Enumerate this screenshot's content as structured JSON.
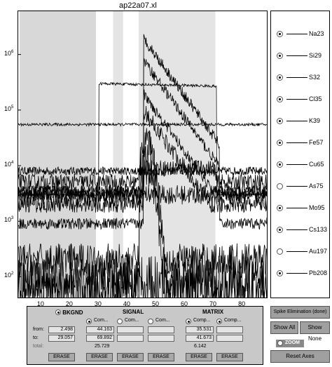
{
  "window": {
    "title": "ap22a07.xl"
  },
  "chart_data": {
    "type": "line",
    "title": "ap22a07.xl",
    "x_ticks": [
      10,
      20,
      30,
      40,
      50,
      60,
      70,
      80
    ],
    "xlim": [
      2,
      89
    ],
    "y_scale": "log",
    "y_ticks": [
      {
        "base": "10",
        "exp": "2",
        "value": 100
      },
      {
        "base": "10",
        "exp": "3",
        "value": 1000
      },
      {
        "base": "10",
        "exp": "4",
        "value": 10000
      },
      {
        "base": "10",
        "exp": "5",
        "value": 100000
      },
      {
        "base": "10",
        "exp": "6",
        "value": 1000000
      }
    ],
    "ylim": [
      40,
      6000000
    ],
    "background_regions": [
      {
        "from": 2.498,
        "to": 29.057,
        "color": "#d8d8d8"
      },
      {
        "from": 35.0,
        "to": 38.5,
        "color": "#e4e4e4"
      },
      {
        "from": 43.9,
        "to": 70.6,
        "color": "#e4e4e4"
      }
    ],
    "grid": false,
    "legend_placement": "right panel",
    "series": [
      {
        "name": "Na23",
        "kind": "flat",
        "base": 8000,
        "peak": 8000,
        "noise": 0.15
      },
      {
        "name": "Si29",
        "kind": "pulse",
        "base": 3000,
        "peak": 3000,
        "noise": 0.35
      },
      {
        "name": "S32",
        "kind": "pulse",
        "base": 5000,
        "peak": 9000,
        "noise": 0.3
      },
      {
        "name": "Cl35",
        "kind": "flat",
        "base": 55000,
        "peak": 60000,
        "noise": 0.05
      },
      {
        "name": "K39",
        "kind": "plateau",
        "base": 3000,
        "peak": 300000,
        "noise": 0.05
      },
      {
        "name": "Fe57",
        "kind": "decay",
        "base": 900,
        "peak": 2000000,
        "noise": 0.2
      },
      {
        "name": "Cu65",
        "kind": "decay",
        "base": 3000,
        "peak": 800000,
        "noise": 0.2
      },
      {
        "name": "As75",
        "kind": "spike",
        "base": 200,
        "peak": 30000,
        "noise": 0.6
      },
      {
        "name": "Mo95",
        "kind": "decay",
        "base": 3500,
        "peak": 200000,
        "noise": 0.2
      },
      {
        "name": "Cs133",
        "kind": "spike",
        "base": 80,
        "peak": 10000,
        "noise": 0.8
      },
      {
        "name": "Au197",
        "kind": "noise",
        "base": 60,
        "peak": 200,
        "noise": 1.2
      },
      {
        "name": "Pb208",
        "kind": "decay",
        "base": 2000,
        "peak": 100000,
        "noise": 0.3
      }
    ]
  },
  "legend": {
    "items": [
      {
        "label": "Na23",
        "selected": true
      },
      {
        "label": "Si29",
        "selected": true
      },
      {
        "label": "S32",
        "selected": true
      },
      {
        "label": "Cl35",
        "selected": true
      },
      {
        "label": "K39",
        "selected": true
      },
      {
        "label": "Fe57",
        "selected": true
      },
      {
        "label": "Cu65",
        "selected": true
      },
      {
        "label": "As75",
        "selected": false
      },
      {
        "label": "Mo95",
        "selected": true
      },
      {
        "label": "Cs133",
        "selected": true
      },
      {
        "label": "Au197",
        "selected": false
      },
      {
        "label": "Pb208",
        "selected": true
      }
    ]
  },
  "controls": {
    "bkgnd_header": "BKGND",
    "signal_header": "SIGNAL",
    "matrix_header": "MATRIX",
    "from_label": "from:",
    "to_label": "to:",
    "total_label": "total:",
    "comp_label": "Com...",
    "comp2_label": "Comp...",
    "bkgnd": {
      "from": "2.498",
      "to": "29.057"
    },
    "signal1": {
      "from": "44.163",
      "to": "69.892",
      "total": "25.729"
    },
    "matrix1": {
      "from": "35.531",
      "to": "41.673",
      "total": "6.142"
    },
    "erase_label": "ERASE"
  },
  "buttons": {
    "spike": "Spike Elimination (done)",
    "show_all": "Show All",
    "show_none": "Show None",
    "zoom": "ZOOM",
    "reset_axes": "Reset Axes"
  }
}
